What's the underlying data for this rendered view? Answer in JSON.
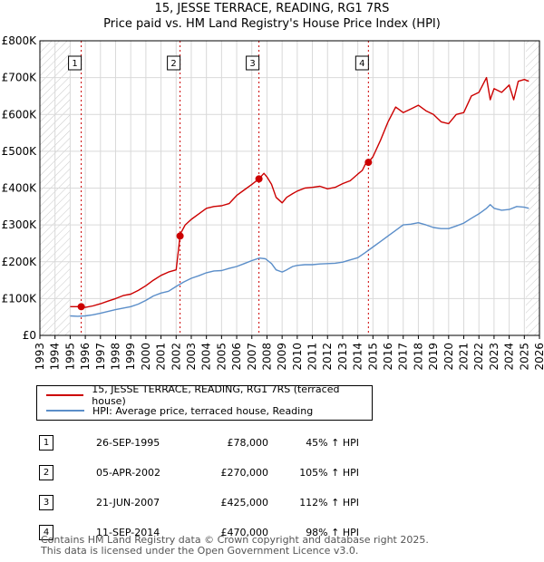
{
  "chart_data": {
    "type": "line",
    "title": "15, JESSE TERRACE, READING, RG1 7RS",
    "subtitle": "Price paid vs. HM Land Registry's House Price Index (HPI)",
    "xlabel": "",
    "ylabel": "",
    "xlim": [
      1993,
      2026
    ],
    "ylim": [
      0,
      800000
    ],
    "x_ticks": [
      "1993",
      "1994",
      "1995",
      "1996",
      "1997",
      "1998",
      "1999",
      "2000",
      "2001",
      "2002",
      "2003",
      "2004",
      "2005",
      "2006",
      "2007",
      "2008",
      "2009",
      "2010",
      "2011",
      "2012",
      "2013",
      "2014",
      "2015",
      "2016",
      "2017",
      "2018",
      "2019",
      "2020",
      "2021",
      "2022",
      "2023",
      "2024",
      "2025",
      "2026"
    ],
    "y_ticks": [
      {
        "value": 0,
        "label": "£0"
      },
      {
        "value": 100000,
        "label": "£100K"
      },
      {
        "value": 200000,
        "label": "£200K"
      },
      {
        "value": 300000,
        "label": "£300K"
      },
      {
        "value": 400000,
        "label": "£400K"
      },
      {
        "value": 500000,
        "label": "£500K"
      },
      {
        "value": 600000,
        "label": "£600K"
      },
      {
        "value": 700000,
        "label": "£700K"
      },
      {
        "value": 800000,
        "label": "£800K"
      }
    ],
    "hatched_ranges": [
      [
        1993,
        1995.0
      ],
      [
        2025.1,
        2026
      ]
    ],
    "series": [
      {
        "name": "15, JESSE TERRACE, READING, RG1 7RS (terraced house)",
        "color": "#cc0000",
        "x": [
          1995.0,
          1995.73,
          1996.0,
          1996.5,
          1997.0,
          1997.5,
          1998.0,
          1998.5,
          1999.0,
          1999.5,
          2000.0,
          2000.5,
          2001.0,
          2001.5,
          2002.0,
          2002.26,
          2002.27,
          2002.6,
          2003.0,
          2003.5,
          2004.0,
          2004.5,
          2005.0,
          2005.5,
          2006.0,
          2006.5,
          2007.0,
          2007.47,
          2007.8,
          2008.0,
          2008.3,
          2008.6,
          2009.0,
          2009.3,
          2009.7,
          2010.0,
          2010.5,
          2011.0,
          2011.5,
          2012.0,
          2012.5,
          2013.0,
          2013.5,
          2014.0,
          2014.3,
          2014.5,
          2014.7,
          2015.0,
          2015.5,
          2016.0,
          2016.5,
          2017.0,
          2017.5,
          2018.0,
          2018.5,
          2019.0,
          2019.5,
          2020.0,
          2020.5,
          2021.0,
          2021.5,
          2022.0,
          2022.5,
          2022.75,
          2023.0,
          2023.5,
          2024.0,
          2024.3,
          2024.6,
          2025.0,
          2025.3
        ],
        "values": [
          78000,
          78000,
          76000,
          80000,
          86000,
          93000,
          100000,
          108000,
          112000,
          122000,
          135000,
          150000,
          163000,
          172000,
          178000,
          270000,
          275000,
          300000,
          315000,
          330000,
          345000,
          350000,
          352000,
          358000,
          380000,
          395000,
          410000,
          425000,
          440000,
          430000,
          410000,
          375000,
          360000,
          375000,
          385000,
          392000,
          400000,
          402000,
          405000,
          398000,
          402000,
          412000,
          420000,
          438000,
          448000,
          465000,
          470000,
          485000,
          530000,
          580000,
          620000,
          605000,
          615000,
          625000,
          610000,
          600000,
          580000,
          575000,
          600000,
          605000,
          650000,
          660000,
          700000,
          640000,
          670000,
          660000,
          680000,
          640000,
          690000,
          695000,
          690000
        ]
      },
      {
        "name": "HPI: Average price, terraced house, Reading",
        "color": "#5b8ec9",
        "x": [
          1995.0,
          1995.5,
          1996.0,
          1996.5,
          1997.0,
          1997.5,
          1998.0,
          1998.5,
          1999.0,
          1999.5,
          2000.0,
          2000.5,
          2001.0,
          2001.5,
          2002.0,
          2002.5,
          2003.0,
          2003.5,
          2004.0,
          2004.5,
          2005.0,
          2005.5,
          2006.0,
          2006.5,
          2007.0,
          2007.5,
          2007.9,
          2008.3,
          2008.6,
          2009.0,
          2009.3,
          2009.7,
          2010.0,
          2010.5,
          2011.0,
          2011.5,
          2012.0,
          2012.5,
          2013.0,
          2013.5,
          2014.0,
          2014.5,
          2015.0,
          2015.5,
          2016.0,
          2016.5,
          2017.0,
          2017.5,
          2018.0,
          2018.5,
          2019.0,
          2019.5,
          2020.0,
          2020.5,
          2021.0,
          2021.5,
          2022.0,
          2022.5,
          2022.75,
          2023.0,
          2023.5,
          2024.0,
          2024.5,
          2025.0,
          2025.3
        ],
        "values": [
          53000,
          52000,
          53000,
          56000,
          60000,
          65000,
          70000,
          74000,
          78000,
          85000,
          95000,
          107000,
          115000,
          120000,
          133000,
          145000,
          155000,
          162000,
          170000,
          175000,
          176000,
          182000,
          187000,
          195000,
          203000,
          210000,
          208000,
          195000,
          178000,
          172000,
          178000,
          187000,
          190000,
          192000,
          192000,
          194000,
          195000,
          196000,
          199000,
          205000,
          211000,
          225000,
          240000,
          255000,
          270000,
          285000,
          300000,
          302000,
          306000,
          300000,
          293000,
          290000,
          290000,
          297000,
          305000,
          318000,
          330000,
          345000,
          355000,
          345000,
          340000,
          342000,
          350000,
          348000,
          345000
        ]
      }
    ],
    "sales": [
      {
        "label": "1",
        "x": 1995.73,
        "value": 78000
      },
      {
        "label": "2",
        "x": 2002.26,
        "value": 270000
      },
      {
        "label": "3",
        "x": 2007.47,
        "value": 425000
      },
      {
        "label": "4",
        "x": 2014.7,
        "value": 470000
      }
    ]
  },
  "legend": {
    "property_label": "15, JESSE TERRACE, READING, RG1 7RS (terraced house)",
    "hpi_label": "HPI: Average price, terraced house, Reading"
  },
  "table": {
    "rows": [
      {
        "num": "1",
        "date": "26-SEP-1995",
        "price": "£78,000",
        "hpi": "45% ↑ HPI"
      },
      {
        "num": "2",
        "date": "05-APR-2002",
        "price": "£270,000",
        "hpi": "105% ↑ HPI"
      },
      {
        "num": "3",
        "date": "21-JUN-2007",
        "price": "£425,000",
        "hpi": "112% ↑ HPI"
      },
      {
        "num": "4",
        "date": "11-SEP-2014",
        "price": "£470,000",
        "hpi": "98% ↑ HPI"
      }
    ]
  },
  "footer": {
    "line1": "Contains HM Land Registry data © Crown copyright and database right 2025.",
    "line2": "This data is licensed under the Open Government Licence v3.0."
  },
  "colors": {
    "property": "#cc0000",
    "hpi": "#5b8ec9",
    "grid": "#d9d9d9"
  }
}
